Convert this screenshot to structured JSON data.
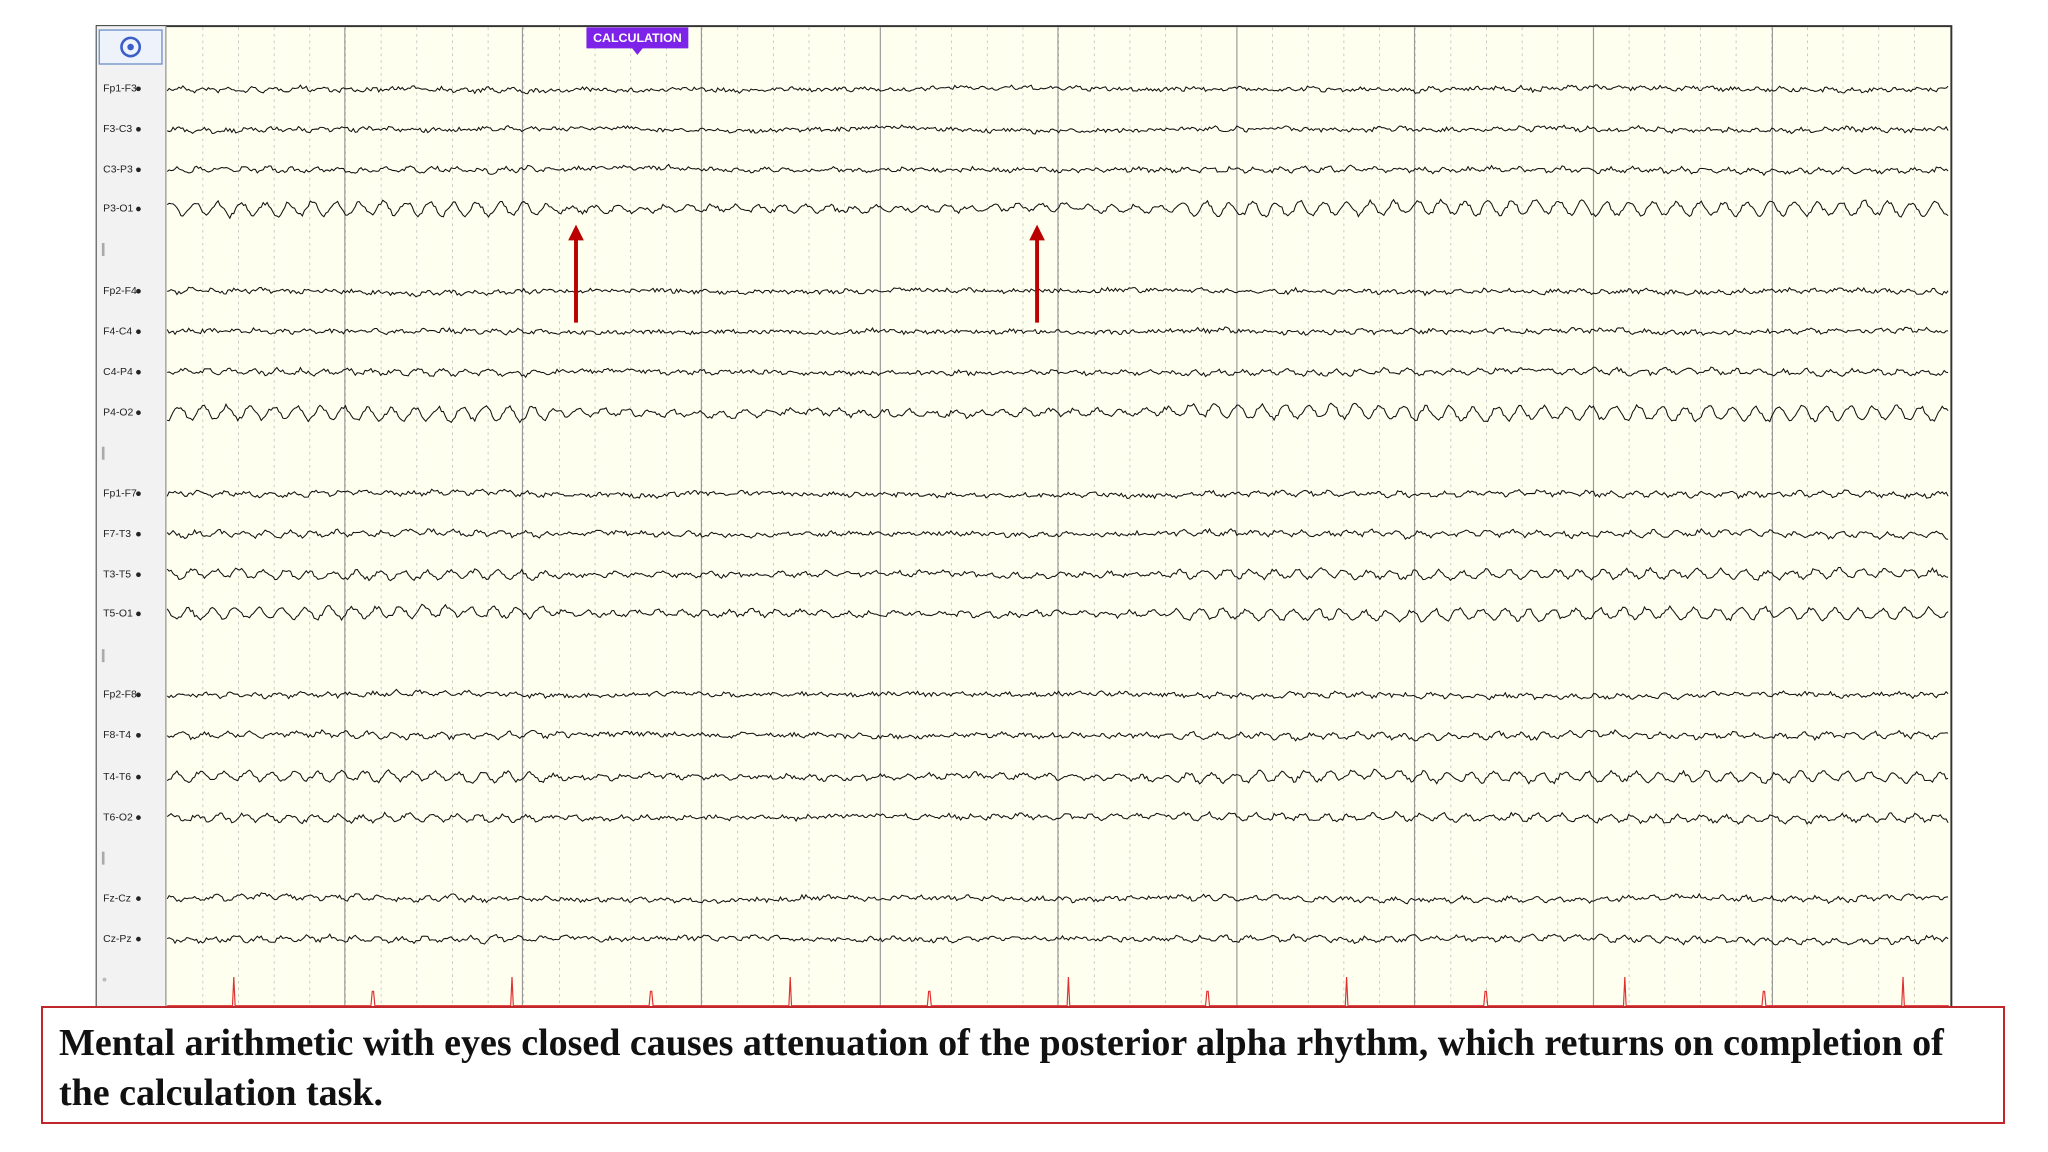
{
  "marker": "CALCULATION",
  "channels": [
    "Fp1-F3",
    "F3-C3",
    "C3-P3",
    "P3-O1",
    "Fp2-F4",
    "F4-C4",
    "C4-P4",
    "P4-O2",
    "Fp1-F7",
    "F7-T3",
    "T3-T5",
    "T5-O1",
    "Fp2-F8",
    "F8-T4",
    "T4-T6",
    "T6-O2",
    "Fz-Cz",
    "Cz-Pz"
  ],
  "caption": "Mental arithmetic with eyes closed causes attenuation of the posterior alpha rhythm, which returns on completion of the calculation task."
}
